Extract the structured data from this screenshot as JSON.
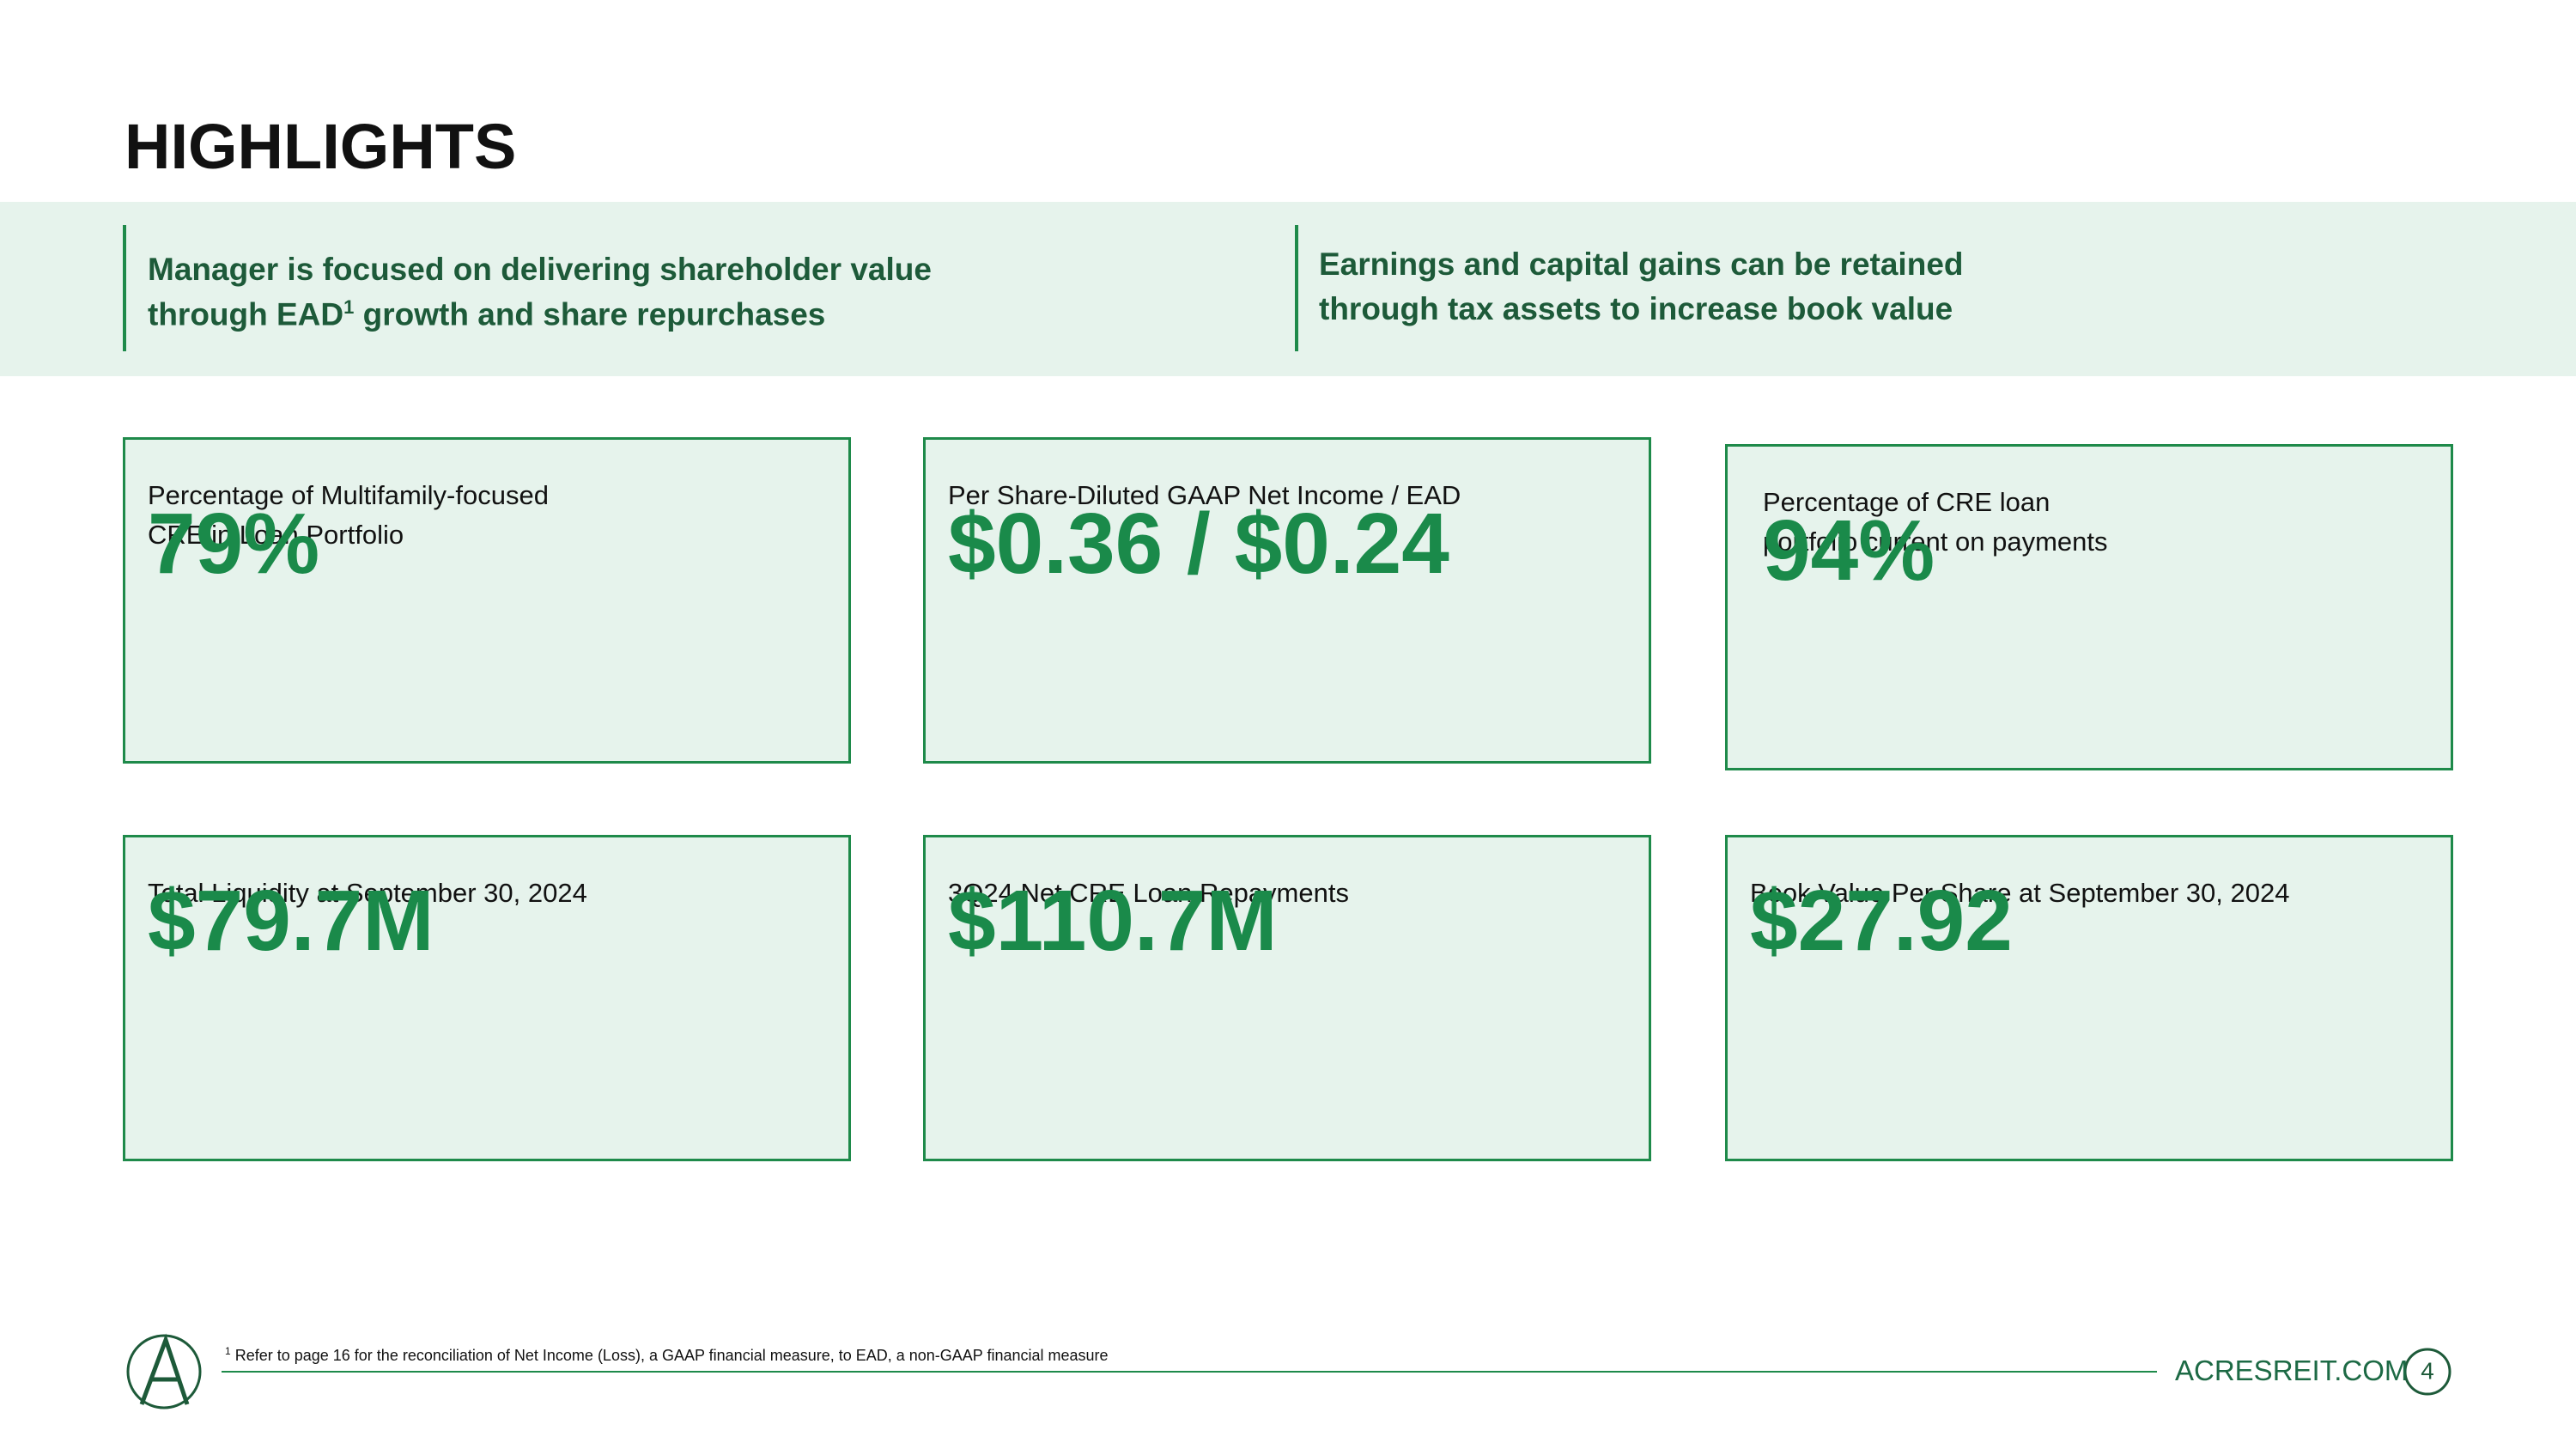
{
  "header": {
    "title": "HIGHLIGHTS"
  },
  "banner": [
    {
      "lines": [
        [
          "Manager is focused on delivering shareholder value"
        ],
        [
          "through EAD",
          "1",
          " growth and share repurchases"
        ]
      ]
    },
    {
      "lines": [
        [
          "Earnings and capital gains can be retained"
        ],
        [
          "through tax assets to increase book value"
        ]
      ]
    }
  ],
  "cards": [
    {
      "label_lines": [
        "Percentage of Multifamily-focused",
        "CRE in Loan Portfolio"
      ],
      "value": "79%"
    },
    {
      "label_lines": [
        "Per Share-Diluted GAAP Net Income / EAD"
      ],
      "value": "$0.36 / $0.24"
    },
    {
      "label_lines": [
        "Percentage of CRE loan",
        "portfolio current on payments"
      ],
      "value": "94%"
    },
    {
      "label_lines": [
        "Total Liquidity at September 30, 2024"
      ],
      "value": "$79.7M"
    },
    {
      "label_lines": [
        "3Q24 Net CRE Loan Repayments"
      ],
      "value": "$110.7M"
    },
    {
      "label_lines": [
        "Book Value Per Share at September 30, 2024"
      ],
      "value": "$27.92"
    }
  ],
  "footer": {
    "footnote_mark": "1",
    "footnote": "Refer to page 16 for the reconciliation of Net Income (Loss), a GAAP financial measure, to EAD, a non-GAAP financial measure",
    "website": "ACRESREIT.COM",
    "page": "4"
  }
}
